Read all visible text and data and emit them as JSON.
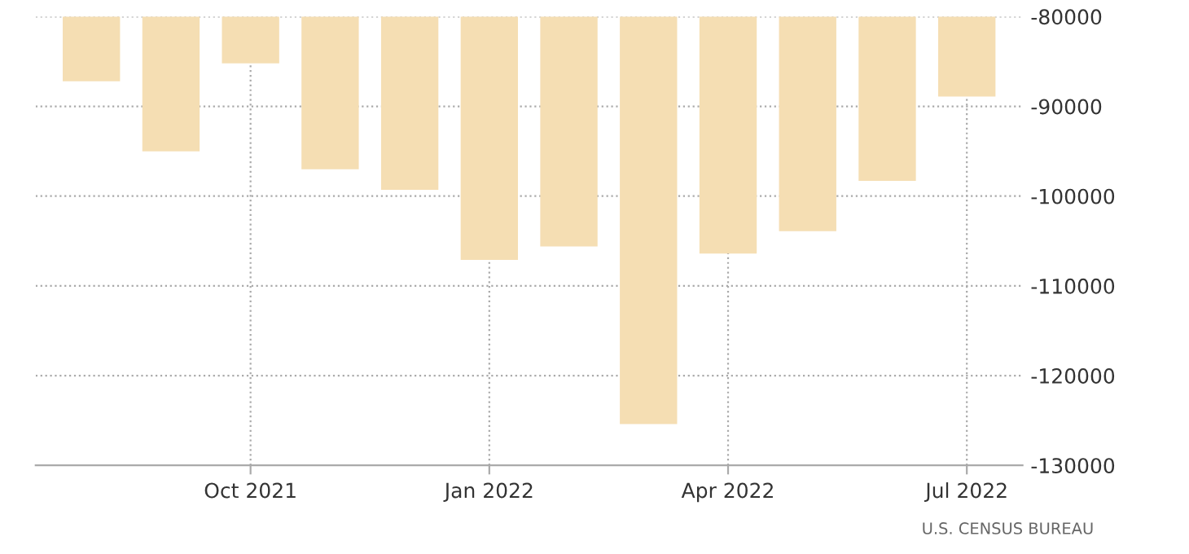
{
  "chart_data": {
    "type": "bar",
    "categories": [
      null,
      null,
      "Oct 2021",
      null,
      null,
      "Jan 2022",
      null,
      null,
      "Apr 2022",
      null,
      null,
      "Jul 2022"
    ],
    "values": [
      -87200,
      -95000,
      -85200,
      -97000,
      -99300,
      -107100,
      -105600,
      -125400,
      -106400,
      -103900,
      -98300,
      -88900
    ],
    "color": "#f5deb3",
    "ylim": [
      -130000,
      -80000
    ],
    "yticks": [
      -130000,
      -120000,
      -110000,
      -100000,
      -90000,
      -80000
    ],
    "grid": true,
    "annotations": [
      "U.S. CENSUS BUREAU"
    ]
  }
}
